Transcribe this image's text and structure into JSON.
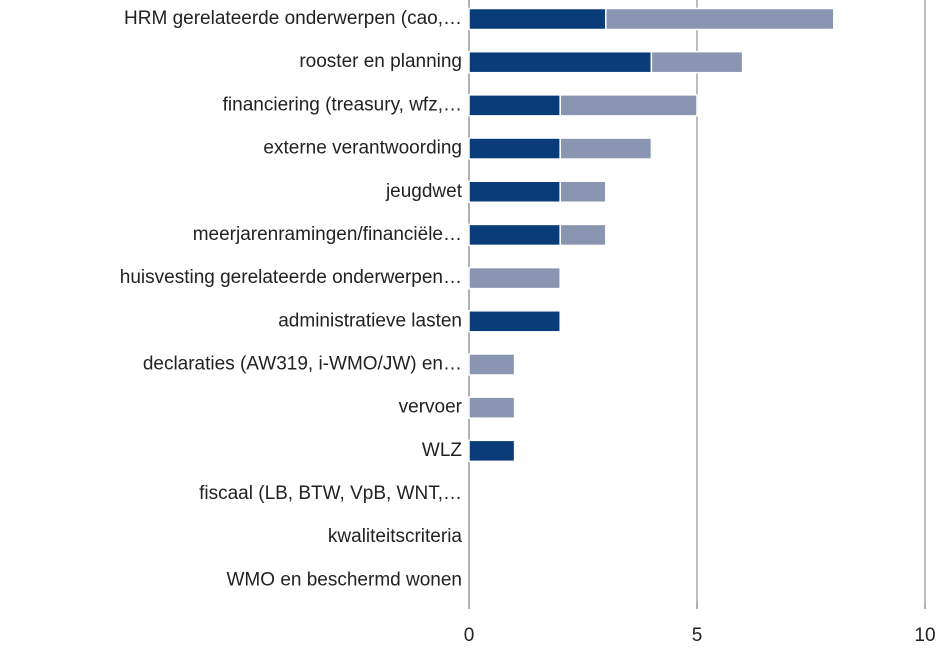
{
  "chart_data": {
    "type": "stacked-bar-horizontal",
    "categories": [
      "HRM gerelateerde onderwerpen (cao,…",
      "rooster en planning",
      "financiering (treasury, wfz,…",
      "externe verantwoording",
      "jeugdwet",
      "meerjarenramingen/financiële…",
      "huisvesting gerelateerde onderwerpen…",
      "administratieve lasten",
      "declaraties (AW319, i-WMO/JW) en…",
      "vervoer",
      "WLZ",
      "fiscaal (LB, BTW, VpB, WNT,…",
      "kwaliteitscriteria",
      "WMO en beschermd wonen"
    ],
    "series": [
      {
        "color": "#0b3c7a",
        "values": [
          3,
          4,
          2,
          2,
          2,
          2,
          0,
          2,
          0,
          0,
          1,
          0,
          0,
          0
        ]
      },
      {
        "color": "#8a95b1",
        "values": [
          5,
          2,
          3,
          2,
          1,
          1,
          2,
          0,
          1,
          1,
          0,
          0,
          0,
          0
        ]
      }
    ],
    "xlim": [
      0,
      10
    ],
    "xticks": [
      0,
      5,
      10
    ],
    "grid": true
  }
}
